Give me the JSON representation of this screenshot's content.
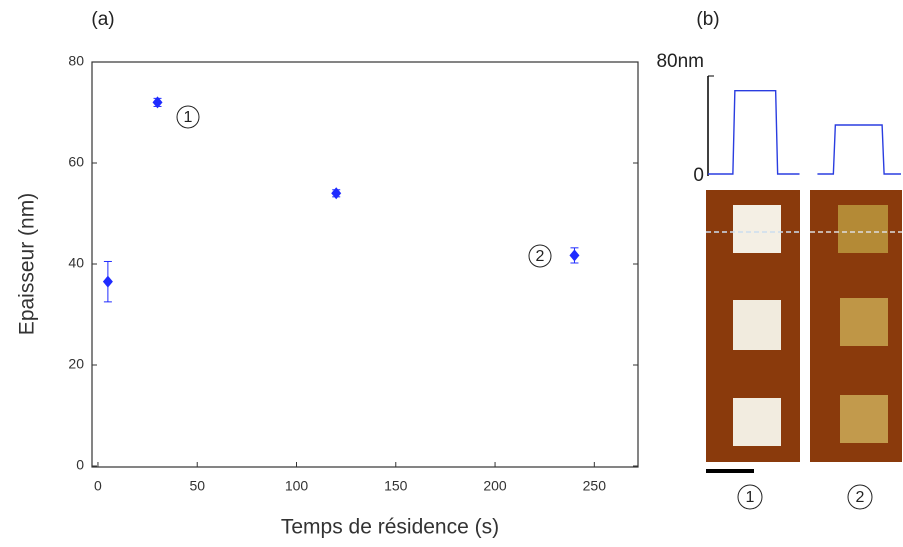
{
  "chart_data": [
    {
      "type": "scatter",
      "panel_label": "(a)",
      "x_label": "Temps de résidence (s)",
      "y_label": "Epaisseur (nm)",
      "xlim": [
        -3,
        272
      ],
      "ylim": [
        -0.2,
        80
      ],
      "xticks": [
        0,
        50,
        100,
        150,
        200,
        250
      ],
      "yticks": [
        0,
        20,
        40,
        60,
        80
      ],
      "series": [
        {
          "color": "#1f2bff",
          "x": [
            5,
            30,
            120,
            240
          ],
          "values": [
            36.5,
            72,
            54,
            41.7
          ],
          "errors": [
            4,
            0.8,
            0.7,
            1.5
          ]
        }
      ],
      "annotations": [
        "1",
        "2"
      ]
    },
    {
      "type": "line",
      "panel_label": "(b)",
      "xlim": [
        0,
        195
      ],
      "ylim": [
        0,
        80
      ],
      "yticks": [
        {
          "value": 80,
          "label": "80nm"
        },
        0
      ],
      "series": [
        {
          "color": "#2a3de0",
          "x": [
            0,
            25,
            27,
            68,
            70,
            92
          ],
          "values": [
            0,
            0,
            68,
            68,
            0,
            0
          ]
        },
        {
          "color": "#2a3de0",
          "x": [
            110,
            126,
            128,
            175,
            177,
            194
          ],
          "values": [
            0,
            0,
            40,
            40,
            0,
            0
          ]
        }
      ],
      "image_labels": [
        "1",
        "2"
      ]
    }
  ]
}
